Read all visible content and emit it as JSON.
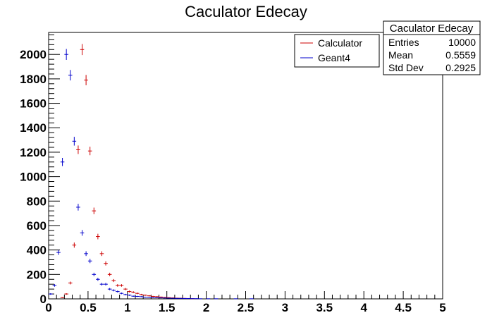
{
  "chart_data": {
    "type": "scatter",
    "title": "Caculator Edecay",
    "xlabel": "",
    "ylabel": "",
    "xlim": [
      0,
      5
    ],
    "ylim": [
      0,
      2180
    ],
    "x_ticks": [
      "0",
      "0.5",
      "1",
      "1.5",
      "2",
      "2.5",
      "3",
      "3.5",
      "4",
      "4.5",
      "5"
    ],
    "y_ticks": [
      "0",
      "200",
      "400",
      "600",
      "800",
      "1000",
      "1200",
      "1400",
      "1600",
      "1800",
      "2000"
    ],
    "grid": false,
    "legend_position": "top-right",
    "series": [
      {
        "name": "Calculator",
        "color": "#cc0000",
        "x": [
          0.175,
          0.225,
          0.275,
          0.325,
          0.375,
          0.425,
          0.475,
          0.525,
          0.575,
          0.625,
          0.675,
          0.725,
          0.775,
          0.825,
          0.875,
          0.925,
          0.975,
          1.025,
          1.075,
          1.125,
          1.175,
          1.225,
          1.275,
          1.325,
          1.375,
          1.425,
          1.475,
          1.525,
          1.575,
          1.625,
          1.675,
          1.725,
          1.775,
          1.825
        ],
        "y": [
          10,
          40,
          130,
          440,
          1220,
          2040,
          1790,
          1210,
          720,
          510,
          370,
          290,
          200,
          150,
          110,
          110,
          80,
          60,
          55,
          45,
          35,
          30,
          25,
          20,
          18,
          15,
          12,
          10,
          8,
          6,
          5,
          4,
          3,
          2
        ]
      },
      {
        "name": "Geant4",
        "color": "#0000cc",
        "x": [
          0.025,
          0.075,
          0.125,
          0.175,
          0.225,
          0.275,
          0.325,
          0.375,
          0.425,
          0.475,
          0.525,
          0.575,
          0.625,
          0.675,
          0.725,
          0.775,
          0.825,
          0.875,
          0.925,
          0.975,
          1.025,
          1.075,
          1.125,
          1.175,
          1.225,
          1.275,
          1.325,
          1.375,
          1.425,
          1.475,
          1.525,
          1.575,
          1.625,
          1.675,
          1.725,
          1.775,
          1.825,
          1.875,
          1.925,
          2.025,
          2.125,
          2.375,
          2.575
        ],
        "y": [
          40,
          110,
          380,
          1120,
          2000,
          1830,
          1290,
          750,
          540,
          370,
          310,
          200,
          160,
          120,
          120,
          80,
          70,
          60,
          45,
          35,
          30,
          22,
          20,
          18,
          14,
          12,
          10,
          9,
          8,
          7,
          6,
          5,
          4,
          4,
          3,
          3,
          2,
          2,
          1,
          1,
          1,
          1,
          1
        ]
      }
    ],
    "stats": {
      "title": "Caculator Edecay",
      "rows": [
        {
          "label": "Entries",
          "value": "10000"
        },
        {
          "label": "Mean",
          "value": "0.5559"
        },
        {
          "label": "Std Dev",
          "value": "0.2925"
        }
      ]
    }
  }
}
